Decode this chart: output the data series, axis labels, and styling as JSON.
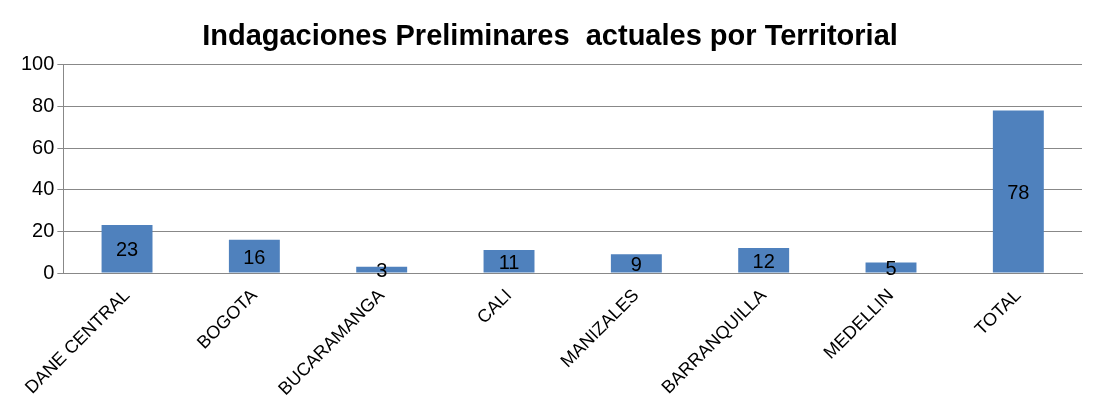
{
  "chart_data": {
    "type": "bar",
    "title": "Indagaciones Preliminares  actuales por Territorial",
    "categories": [
      "DANE CENTRAL",
      "BOGOTA",
      "BUCARAMANGA",
      "CALI",
      "MANIZALES",
      "BARRANQUILLA",
      "MEDELLIN",
      "TOTAL"
    ],
    "values": [
      23,
      16,
      3,
      11,
      9,
      12,
      5,
      78
    ],
    "color": "#4f81bd",
    "ylim": [
      0,
      100
    ],
    "yticks": [
      0,
      20,
      40,
      60,
      80,
      100
    ],
    "grid": "y",
    "data_labels": true,
    "legend": false
  }
}
